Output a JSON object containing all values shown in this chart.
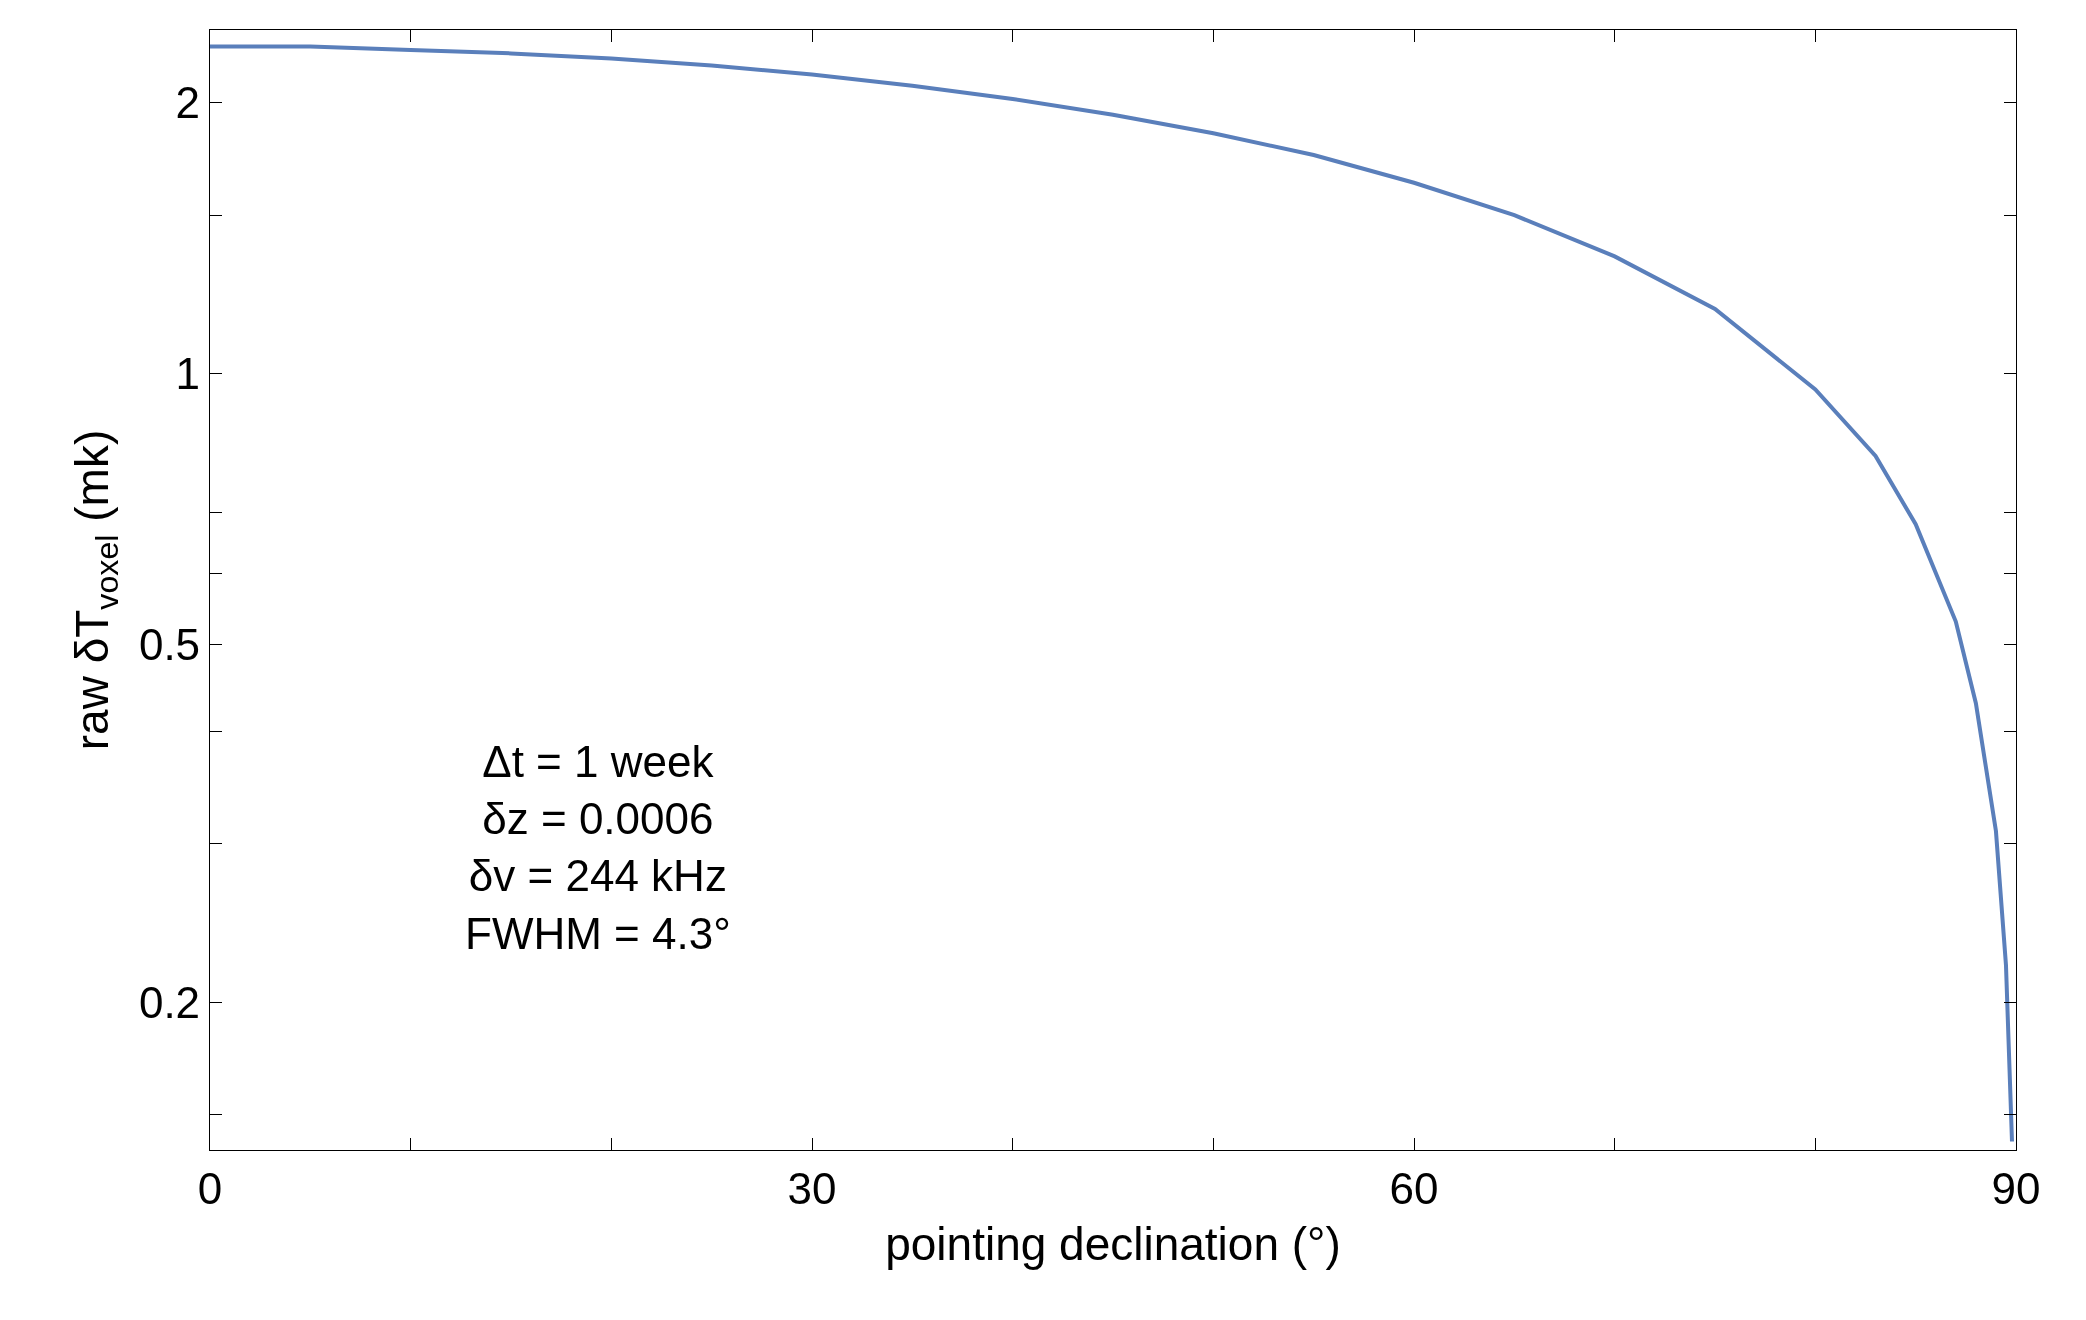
{
  "chart_data": {
    "type": "line",
    "xlabel": "pointing declination (°)",
    "ylabel": "raw δT$_{voxel}$ (mk)",
    "x": [
      0,
      5,
      10,
      15,
      20,
      25,
      30,
      35,
      40,
      45,
      50,
      55,
      60,
      65,
      70,
      75,
      80,
      83,
      85,
      87,
      88,
      89,
      89.5,
      89.8
    ],
    "series": [
      {
        "color": "#5a7fbb",
        "values": [
          2.31,
          2.31,
          2.29,
          2.27,
          2.24,
          2.2,
          2.15,
          2.09,
          2.02,
          1.94,
          1.85,
          1.75,
          1.63,
          1.5,
          1.35,
          1.18,
          0.96,
          0.81,
          0.68,
          0.53,
          0.43,
          0.31,
          0.22,
          0.14
        ]
      }
    ],
    "log": "y",
    "xlim": [
      0,
      90
    ],
    "ylim": [
      0.137,
      2.41
    ],
    "xticks": [
      0,
      30,
      60,
      90,
      {
        "value": 10,
        "label": null
      },
      {
        "value": 20,
        "label": null
      },
      {
        "value": 40,
        "label": null
      },
      {
        "value": 50,
        "label": null
      },
      {
        "value": 70,
        "label": null
      },
      {
        "value": 80,
        "label": null
      }
    ],
    "yticks": [
      {
        "value": 0.15,
        "label": null
      },
      0.2,
      {
        "value": 0.3,
        "label": null
      },
      {
        "value": 0.4,
        "label": null
      },
      0.5,
      {
        "value": 0.6,
        "label": null
      },
      {
        "value": 0.7,
        "label": null
      },
      1,
      {
        "value": 1.5,
        "label": null
      },
      2
    ],
    "marker": "none",
    "line_style": "solid",
    "annotations": [
      "Δt = 1 week",
      "δz = 0.0006",
      "δv = 244 kHz",
      "FWHM = 4.3°"
    ]
  }
}
